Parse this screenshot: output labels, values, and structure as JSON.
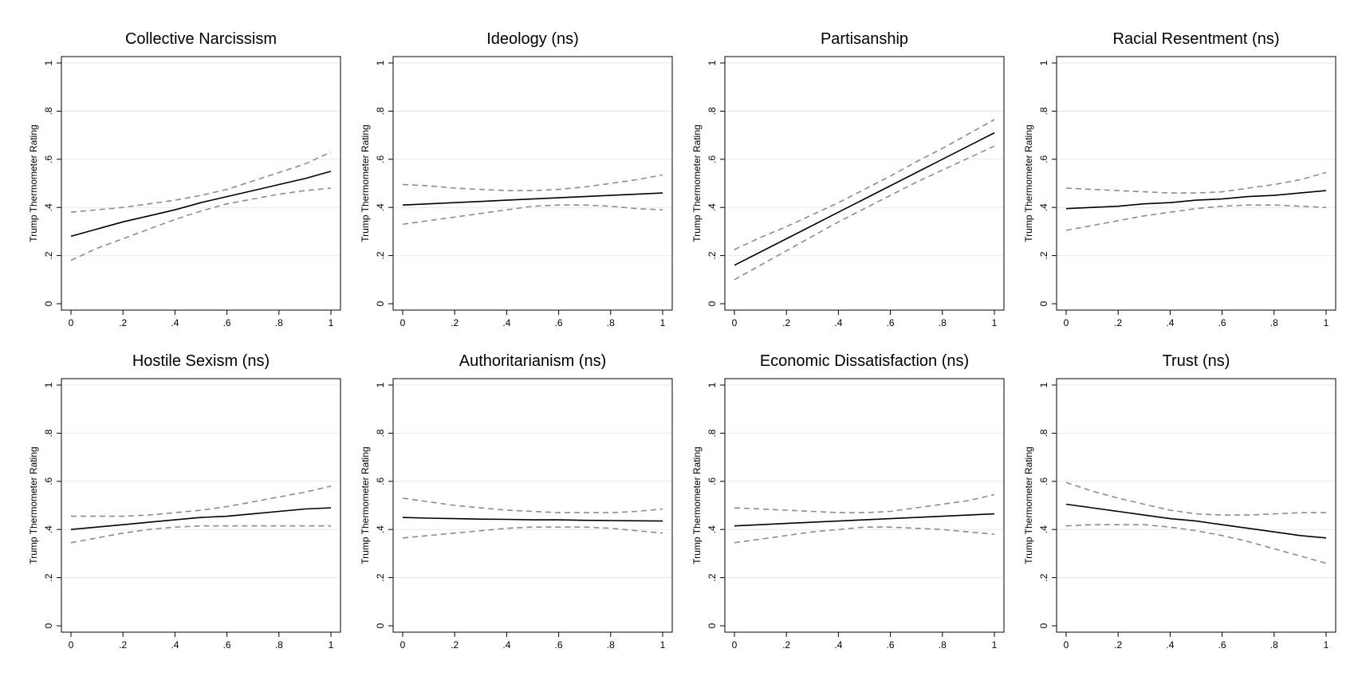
{
  "chart_data": [
    {
      "type": "line",
      "title": "Collective Narcissism",
      "ylabel": "Trump Thermometer Rating",
      "xlim": [
        0,
        1
      ],
      "ylim": [
        0,
        1
      ],
      "x_ticks": [
        "0",
        ".2",
        ".4",
        ".6",
        ".8",
        "1"
      ],
      "y_ticks": [
        "0",
        ".2",
        ".4",
        ".6",
        ".8",
        "1"
      ],
      "grid": true,
      "x": [
        0,
        0.1,
        0.2,
        0.3,
        0.4,
        0.5,
        0.6,
        0.7,
        0.8,
        0.9,
        1
      ],
      "fit": [
        0.28,
        0.31,
        0.34,
        0.365,
        0.39,
        0.42,
        0.445,
        0.47,
        0.495,
        0.52,
        0.55
      ],
      "upper": [
        0.38,
        0.39,
        0.4,
        0.415,
        0.43,
        0.45,
        0.475,
        0.51,
        0.545,
        0.58,
        0.63
      ],
      "lower": [
        0.18,
        0.23,
        0.27,
        0.31,
        0.35,
        0.385,
        0.415,
        0.435,
        0.455,
        0.47,
        0.48
      ]
    },
    {
      "type": "line",
      "title": "Ideology (ns)",
      "ylabel": "Trump Thermometer Rating",
      "xlim": [
        0,
        1
      ],
      "ylim": [
        0,
        1
      ],
      "x_ticks": [
        "0",
        ".2",
        ".4",
        ".6",
        ".8",
        "1"
      ],
      "y_ticks": [
        "0",
        ".2",
        ".4",
        ".6",
        ".8",
        "1"
      ],
      "grid": true,
      "x": [
        0,
        0.1,
        0.2,
        0.3,
        0.4,
        0.5,
        0.6,
        0.7,
        0.8,
        0.9,
        1
      ],
      "fit": [
        0.41,
        0.415,
        0.42,
        0.425,
        0.43,
        0.435,
        0.44,
        0.445,
        0.45,
        0.455,
        0.46
      ],
      "upper": [
        0.495,
        0.49,
        0.48,
        0.475,
        0.47,
        0.47,
        0.475,
        0.485,
        0.5,
        0.515,
        0.535
      ],
      "lower": [
        0.33,
        0.345,
        0.36,
        0.375,
        0.39,
        0.405,
        0.41,
        0.41,
        0.405,
        0.395,
        0.39
      ]
    },
    {
      "type": "line",
      "title": "Partisanship",
      "ylabel": "Trump Thermometer Rating",
      "xlim": [
        0,
        1
      ],
      "ylim": [
        0,
        1
      ],
      "x_ticks": [
        "0",
        ".2",
        ".4",
        ".6",
        ".8",
        "1"
      ],
      "y_ticks": [
        "0",
        ".2",
        ".4",
        ".6",
        ".8",
        "1"
      ],
      "grid": true,
      "x": [
        0,
        0.1,
        0.2,
        0.3,
        0.4,
        0.5,
        0.6,
        0.7,
        0.8,
        0.9,
        1
      ],
      "fit": [
        0.16,
        0.215,
        0.27,
        0.325,
        0.38,
        0.435,
        0.49,
        0.545,
        0.6,
        0.655,
        0.71
      ],
      "upper": [
        0.225,
        0.275,
        0.32,
        0.37,
        0.42,
        0.475,
        0.53,
        0.59,
        0.645,
        0.705,
        0.765
      ],
      "lower": [
        0.1,
        0.16,
        0.22,
        0.28,
        0.34,
        0.395,
        0.45,
        0.505,
        0.555,
        0.605,
        0.655
      ]
    },
    {
      "type": "line",
      "title": "Racial Resentment (ns)",
      "ylabel": "Trump Thermometer Rating",
      "xlim": [
        0,
        1
      ],
      "ylim": [
        0,
        1
      ],
      "x_ticks": [
        "0",
        ".2",
        ".4",
        ".6",
        ".8",
        "1"
      ],
      "y_ticks": [
        "0",
        ".2",
        ".4",
        ".6",
        ".8",
        "1"
      ],
      "grid": true,
      "x": [
        0,
        0.1,
        0.2,
        0.3,
        0.4,
        0.5,
        0.6,
        0.7,
        0.8,
        0.9,
        1
      ],
      "fit": [
        0.395,
        0.4,
        0.405,
        0.415,
        0.42,
        0.43,
        0.435,
        0.445,
        0.45,
        0.46,
        0.47
      ],
      "upper": [
        0.48,
        0.475,
        0.47,
        0.465,
        0.46,
        0.46,
        0.465,
        0.48,
        0.495,
        0.515,
        0.545
      ],
      "lower": [
        0.305,
        0.325,
        0.345,
        0.365,
        0.38,
        0.395,
        0.405,
        0.41,
        0.41,
        0.405,
        0.4
      ]
    },
    {
      "type": "line",
      "title": "Hostile Sexism (ns)",
      "ylabel": "Trump Thermometer Rating",
      "xlim": [
        0,
        1
      ],
      "ylim": [
        0,
        1
      ],
      "x_ticks": [
        "0",
        ".2",
        ".4",
        ".6",
        ".8",
        "1"
      ],
      "y_ticks": [
        "0",
        ".2",
        ".4",
        ".6",
        ".8",
        "1"
      ],
      "grid": true,
      "x": [
        0,
        0.1,
        0.2,
        0.3,
        0.4,
        0.5,
        0.6,
        0.7,
        0.8,
        0.9,
        1
      ],
      "fit": [
        0.4,
        0.41,
        0.42,
        0.43,
        0.44,
        0.45,
        0.455,
        0.465,
        0.475,
        0.485,
        0.49
      ],
      "upper": [
        0.455,
        0.455,
        0.455,
        0.46,
        0.47,
        0.48,
        0.495,
        0.515,
        0.535,
        0.555,
        0.58
      ],
      "lower": [
        0.345,
        0.365,
        0.385,
        0.4,
        0.41,
        0.415,
        0.415,
        0.415,
        0.415,
        0.415,
        0.415
      ]
    },
    {
      "type": "line",
      "title": "Authoritarianism (ns)",
      "ylabel": "Trump Thermometer Rating",
      "xlim": [
        0,
        1
      ],
      "ylim": [
        0,
        1
      ],
      "x_ticks": [
        "0",
        ".2",
        ".4",
        ".6",
        ".8",
        "1"
      ],
      "y_ticks": [
        "0",
        ".2",
        ".4",
        ".6",
        ".8",
        "1"
      ],
      "grid": true,
      "x": [
        0,
        0.1,
        0.2,
        0.3,
        0.4,
        0.5,
        0.6,
        0.7,
        0.8,
        0.9,
        1
      ],
      "fit": [
        0.45,
        0.447,
        0.445,
        0.443,
        0.442,
        0.44,
        0.44,
        0.438,
        0.437,
        0.436,
        0.435
      ],
      "upper": [
        0.53,
        0.515,
        0.5,
        0.49,
        0.48,
        0.475,
        0.47,
        0.47,
        0.47,
        0.475,
        0.485
      ],
      "lower": [
        0.365,
        0.375,
        0.385,
        0.395,
        0.405,
        0.41,
        0.41,
        0.41,
        0.405,
        0.395,
        0.385
      ]
    },
    {
      "type": "line",
      "title": "Economic Dissatisfaction (ns)",
      "ylabel": "Trump Thermometer Rating",
      "xlim": [
        0,
        1
      ],
      "ylim": [
        0,
        1
      ],
      "x_ticks": [
        "0",
        ".2",
        ".4",
        ".6",
        ".8",
        "1"
      ],
      "y_ticks": [
        "0",
        ".2",
        ".4",
        ".6",
        ".8",
        "1"
      ],
      "grid": true,
      "x": [
        0,
        0.1,
        0.2,
        0.3,
        0.4,
        0.5,
        0.6,
        0.7,
        0.8,
        0.9,
        1
      ],
      "fit": [
        0.415,
        0.42,
        0.425,
        0.43,
        0.435,
        0.44,
        0.445,
        0.45,
        0.455,
        0.46,
        0.465
      ],
      "upper": [
        0.49,
        0.485,
        0.48,
        0.475,
        0.47,
        0.47,
        0.475,
        0.49,
        0.505,
        0.52,
        0.545
      ],
      "lower": [
        0.345,
        0.36,
        0.375,
        0.39,
        0.4,
        0.41,
        0.41,
        0.405,
        0.4,
        0.39,
        0.38
      ]
    },
    {
      "type": "line",
      "title": "Trust (ns)",
      "ylabel": "Trump Thermometer Rating",
      "xlim": [
        0,
        1
      ],
      "ylim": [
        0,
        1
      ],
      "x_ticks": [
        "0",
        ".2",
        ".4",
        ".6",
        ".8",
        "1"
      ],
      "y_ticks": [
        "0",
        ".2",
        ".4",
        ".6",
        ".8",
        "1"
      ],
      "grid": true,
      "x": [
        0,
        0.1,
        0.2,
        0.3,
        0.4,
        0.5,
        0.6,
        0.7,
        0.8,
        0.9,
        1
      ],
      "fit": [
        0.505,
        0.49,
        0.475,
        0.46,
        0.445,
        0.435,
        0.42,
        0.405,
        0.39,
        0.375,
        0.365
      ],
      "upper": [
        0.595,
        0.56,
        0.53,
        0.505,
        0.48,
        0.465,
        0.46,
        0.46,
        0.465,
        0.47,
        0.47
      ],
      "lower": [
        0.415,
        0.42,
        0.42,
        0.42,
        0.41,
        0.395,
        0.375,
        0.35,
        0.32,
        0.29,
        0.26
      ]
    }
  ],
  "colors": {
    "background": "#ffffff",
    "fit_line": "#000000",
    "ci_line": "#8c8c8c",
    "grid": "#e9e9e9"
  }
}
